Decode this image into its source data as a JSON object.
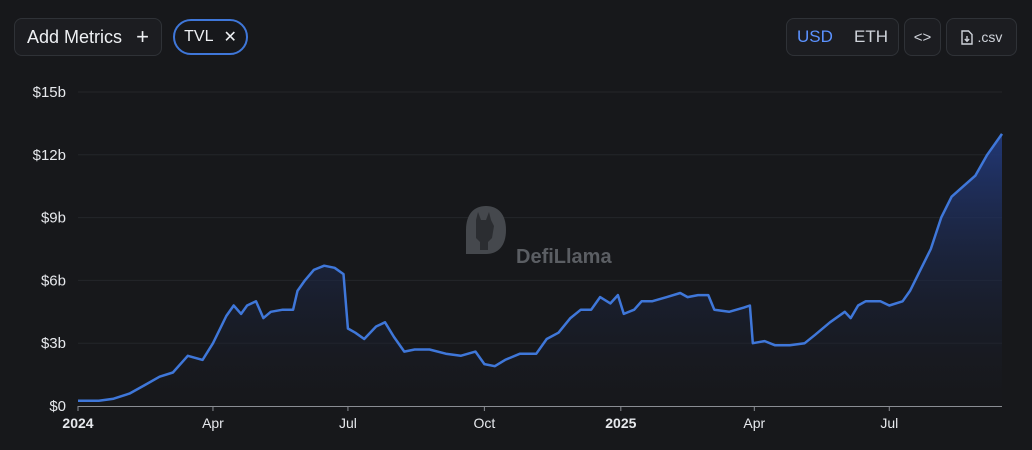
{
  "toolbar": {
    "add_metrics_label": "Add Metrics",
    "add_icon": "plus-icon",
    "selected_metric": "TVL",
    "remove_icon": "x-icon",
    "currency_options": [
      "USD",
      "ETH"
    ],
    "currency_selected": "USD",
    "embed_label": "<>",
    "embed_icon": "code-icon",
    "csv_label": ".csv",
    "csv_icon": "file-download-icon"
  },
  "watermark": {
    "text": "DefiLlama",
    "icon": "llama-logo-icon"
  },
  "colors": {
    "background": "#17181b",
    "line": "#3f77d9",
    "accent": "#5b92ff",
    "area_top": "#22397a"
  },
  "chart_data": {
    "type": "area",
    "title": "",
    "xlabel": "",
    "ylabel": "",
    "ylim": [
      0,
      15
    ],
    "y_unit": "billions USD",
    "y_ticks": [
      0,
      3,
      6,
      9,
      12,
      15
    ],
    "y_tick_labels": [
      "$0",
      "$3b",
      "$6b",
      "$9b",
      "$12b",
      "$15b"
    ],
    "x_range": [
      "2024-01-01",
      "2025-09-15"
    ],
    "x_ticks": [
      {
        "date": "2024-01-01",
        "label": "2024",
        "bold": true
      },
      {
        "date": "2024-04-01",
        "label": "Apr",
        "bold": false
      },
      {
        "date": "2024-07-01",
        "label": "Jul",
        "bold": false
      },
      {
        "date": "2024-10-01",
        "label": "Oct",
        "bold": false
      },
      {
        "date": "2025-01-01",
        "label": "2025",
        "bold": true
      },
      {
        "date": "2025-04-01",
        "label": "Apr",
        "bold": false
      },
      {
        "date": "2025-07-01",
        "label": "Jul",
        "bold": false
      }
    ],
    "grid": true,
    "legend": "none",
    "series": [
      {
        "points": [
          [
            "2024-01-01",
            0.25
          ],
          [
            "2024-01-15",
            0.25
          ],
          [
            "2024-01-25",
            0.35
          ],
          [
            "2024-02-05",
            0.6
          ],
          [
            "2024-02-15",
            1.0
          ],
          [
            "2024-02-25",
            1.4
          ],
          [
            "2024-03-05",
            1.6
          ],
          [
            "2024-03-15",
            2.4
          ],
          [
            "2024-03-25",
            2.2
          ],
          [
            "2024-04-01",
            3.0
          ],
          [
            "2024-04-10",
            4.3
          ],
          [
            "2024-04-15",
            4.8
          ],
          [
            "2024-04-20",
            4.4
          ],
          [
            "2024-04-24",
            4.8
          ],
          [
            "2024-04-30",
            5.0
          ],
          [
            "2024-05-05",
            4.2
          ],
          [
            "2024-05-10",
            4.5
          ],
          [
            "2024-05-18",
            4.6
          ],
          [
            "2024-05-25",
            4.6
          ],
          [
            "2024-05-28",
            5.5
          ],
          [
            "2024-06-02",
            6.0
          ],
          [
            "2024-06-08",
            6.5
          ],
          [
            "2024-06-15",
            6.7
          ],
          [
            "2024-06-22",
            6.6
          ],
          [
            "2024-06-28",
            6.3
          ],
          [
            "2024-07-01",
            3.7
          ],
          [
            "2024-07-06",
            3.5
          ],
          [
            "2024-07-12",
            3.2
          ],
          [
            "2024-07-20",
            3.8
          ],
          [
            "2024-07-26",
            4.0
          ],
          [
            "2024-08-01",
            3.3
          ],
          [
            "2024-08-08",
            2.6
          ],
          [
            "2024-08-15",
            2.7
          ],
          [
            "2024-08-25",
            2.7
          ],
          [
            "2024-09-05",
            2.5
          ],
          [
            "2024-09-15",
            2.4
          ],
          [
            "2024-09-25",
            2.6
          ],
          [
            "2024-10-01",
            2.0
          ],
          [
            "2024-10-08",
            1.9
          ],
          [
            "2024-10-15",
            2.2
          ],
          [
            "2024-10-25",
            2.5
          ],
          [
            "2024-11-05",
            2.5
          ],
          [
            "2024-11-12",
            3.2
          ],
          [
            "2024-11-20",
            3.5
          ],
          [
            "2024-11-28",
            4.2
          ],
          [
            "2024-12-05",
            4.6
          ],
          [
            "2024-12-12",
            4.6
          ],
          [
            "2024-12-18",
            5.2
          ],
          [
            "2024-12-25",
            4.9
          ],
          [
            "2024-12-30",
            5.3
          ],
          [
            "2025-01-03",
            4.4
          ],
          [
            "2025-01-10",
            4.6
          ],
          [
            "2025-01-15",
            5.0
          ],
          [
            "2025-01-22",
            5.0
          ],
          [
            "2025-02-01",
            5.2
          ],
          [
            "2025-02-10",
            5.4
          ],
          [
            "2025-02-15",
            5.2
          ],
          [
            "2025-02-22",
            5.3
          ],
          [
            "2025-03-01",
            5.3
          ],
          [
            "2025-03-05",
            4.6
          ],
          [
            "2025-03-15",
            4.5
          ],
          [
            "2025-03-25",
            4.7
          ],
          [
            "2025-03-29",
            4.8
          ],
          [
            "2025-03-31",
            3.0
          ],
          [
            "2025-04-08",
            3.1
          ],
          [
            "2025-04-15",
            2.9
          ],
          [
            "2025-04-25",
            2.9
          ],
          [
            "2025-05-05",
            3.0
          ],
          [
            "2025-05-12",
            3.4
          ],
          [
            "2025-05-22",
            4.0
          ],
          [
            "2025-06-01",
            4.5
          ],
          [
            "2025-06-05",
            4.2
          ],
          [
            "2025-06-10",
            4.8
          ],
          [
            "2025-06-15",
            5.0
          ],
          [
            "2025-06-25",
            5.0
          ],
          [
            "2025-07-01",
            4.8
          ],
          [
            "2025-07-10",
            5.0
          ],
          [
            "2025-07-15",
            5.5
          ],
          [
            "2025-07-22",
            6.5
          ],
          [
            "2025-07-29",
            7.5
          ],
          [
            "2025-08-05",
            9.0
          ],
          [
            "2025-08-12",
            10.0
          ],
          [
            "2025-08-20",
            10.5
          ],
          [
            "2025-08-28",
            11.0
          ],
          [
            "2025-09-05",
            12.0
          ],
          [
            "2025-09-15",
            13.0
          ]
        ]
      }
    ]
  }
}
